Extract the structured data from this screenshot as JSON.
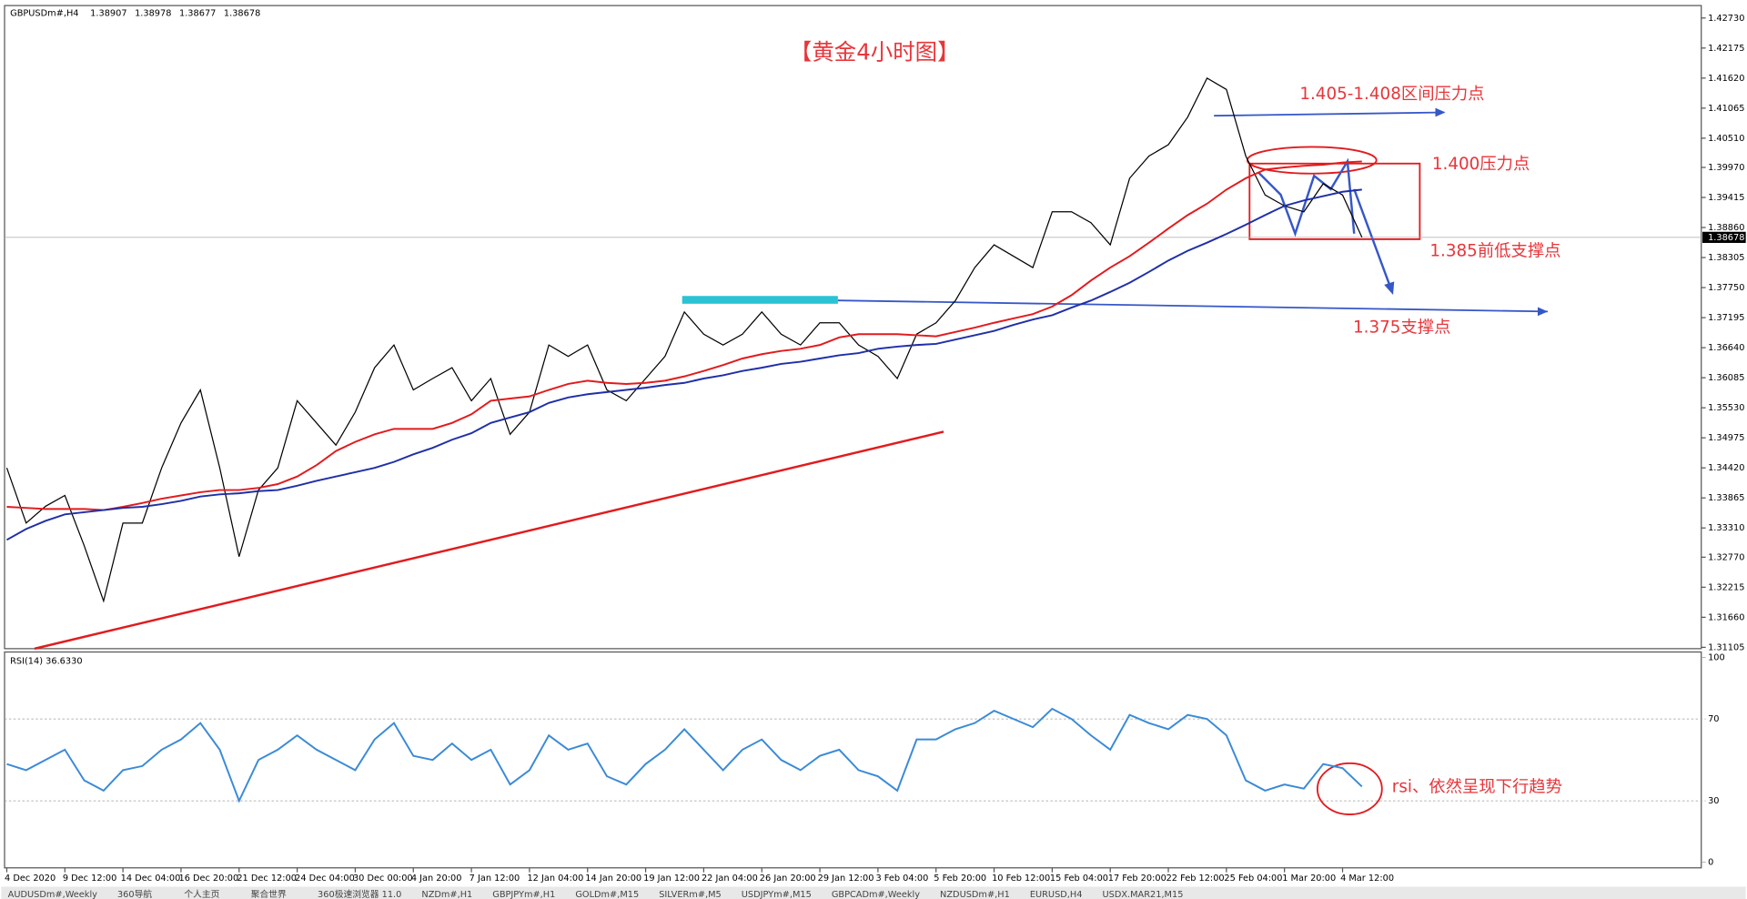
{
  "window": {
    "symbol": "GBPUSDm#,H4",
    "ohlc": [
      1.38907,
      1.38978,
      1.38677,
      1.38678
    ],
    "tabs": [
      "AUDUSDm#,Weekly",
      "360导航",
      "个人主页",
      "聚合世界",
      "360极速浏览器 11.0",
      "NZDm#,H1",
      "GBPJPYm#,H1",
      "GOLDm#,M15",
      "SILVERm#,M5",
      "USDJPYm#,M15",
      "GBPCADm#,Weekly",
      "NZDUSDm#,H1",
      "EURUSD,H4",
      "USDX.MAR21,M15"
    ]
  },
  "chart_data": [
    {
      "type": "line",
      "title": "【黄金4小时图】",
      "annotations": [
        "1.405-1.408区间压力点",
        "1.400压力点",
        "1.385前低支撑点",
        "1.375支撑点"
      ],
      "current_price": 1.38678,
      "categories": [
        "4 Dec 2020",
        null,
        null,
        "9 Dec 12:00",
        null,
        null,
        "14 Dec 04:00",
        null,
        null,
        "16 Dec 20:00",
        null,
        null,
        "21 Dec 12:00",
        null,
        null,
        "24 Dec 04:00",
        null,
        null,
        "30 Dec 00:00",
        null,
        null,
        "4 Jan 20:00",
        null,
        null,
        "7 Jan 12:00",
        null,
        null,
        "12 Jan 04:00",
        null,
        null,
        "14 Jan 20:00",
        null,
        null,
        "19 Jan 12:00",
        null,
        null,
        "22 Jan 04:00",
        null,
        null,
        "26 Jan 20:00",
        null,
        null,
        "29 Jan 12:00",
        null,
        null,
        "3 Feb 04:00",
        null,
        null,
        "5 Feb 20:00",
        null,
        null,
        "10 Feb 12:00",
        null,
        null,
        "15 Feb 04:00",
        null,
        null,
        "17 Feb 20:00",
        null,
        null,
        "22 Feb 12:00",
        null,
        null,
        "25 Feb 04:00",
        null,
        null,
        "1 Mar 20:00",
        null,
        null,
        "4 Mar 12:00",
        null
      ],
      "series": [
        {
          "color": "#000000",
          "values": [
            1.3442,
            1.334,
            1.3371,
            1.3391,
            1.3298,
            1.3196,
            1.334,
            1.334,
            1.3442,
            1.3525,
            1.3586,
            1.3442,
            1.3278,
            1.3401,
            1.3442,
            1.3566,
            1.3525,
            1.3484,
            1.3545,
            1.3627,
            1.3669,
            1.3586,
            1.3607,
            1.3627,
            1.3566,
            1.3607,
            1.3504,
            1.3545,
            1.3669,
            1.3648,
            1.3669,
            1.3586,
            1.3566,
            1.3607,
            1.3648,
            1.373,
            1.3689,
            1.3669,
            1.3689,
            1.373,
            1.3689,
            1.3669,
            1.371,
            1.371,
            1.3669,
            1.3648,
            1.3607,
            1.3689,
            1.371,
            1.3751,
            1.3812,
            1.3854,
            1.3833,
            1.3812,
            1.3915,
            1.3915,
            1.3895,
            1.3854,
            1.3977,
            1.4018,
            1.4039,
            1.409,
            1.4162,
            1.4141,
            1.4018,
            1.3946,
            1.3926,
            1.3915,
            1.3967,
            1.3946,
            1.3868
          ]
        },
        {
          "color": "#e31a1c",
          "values": [
            1.337,
            1.3368,
            1.3366,
            1.3366,
            1.3366,
            1.3364,
            1.337,
            1.3377,
            1.3385,
            1.3391,
            1.3397,
            1.3401,
            1.3401,
            1.3405,
            1.3412,
            1.3426,
            1.3447,
            1.3473,
            1.349,
            1.3504,
            1.3514,
            1.3514,
            1.3514,
            1.3525,
            1.3541,
            1.3566,
            1.357,
            1.3574,
            1.3586,
            1.3597,
            1.3603,
            1.3599,
            1.3597,
            1.3599,
            1.3603,
            1.3611,
            1.3621,
            1.3632,
            1.3644,
            1.3652,
            1.3658,
            1.3662,
            1.3669,
            1.3683,
            1.3689,
            1.3689,
            1.3689,
            1.3687,
            1.3685,
            1.3693,
            1.3701,
            1.371,
            1.3718,
            1.3726,
            1.374,
            1.3761,
            1.3788,
            1.3812,
            1.3833,
            1.3858,
            1.3884,
            1.3909,
            1.393,
            1.3956,
            1.3977,
            1.3993,
            1.3997,
            1.4,
            1.4002,
            1.4006,
            1.4008
          ]
        },
        {
          "color": "#1f2fa8",
          "values": [
            1.3309,
            1.3329,
            1.3344,
            1.3356,
            1.336,
            1.3364,
            1.3368,
            1.337,
            1.3375,
            1.3381,
            1.3389,
            1.3393,
            1.3395,
            1.3399,
            1.3401,
            1.3409,
            1.3418,
            1.3426,
            1.3434,
            1.3442,
            1.3453,
            1.3467,
            1.3479,
            1.3494,
            1.3506,
            1.3525,
            1.3535,
            1.3545,
            1.3562,
            1.3572,
            1.3578,
            1.3582,
            1.3586,
            1.359,
            1.3595,
            1.3599,
            1.3607,
            1.3613,
            1.3621,
            1.3627,
            1.3634,
            1.3638,
            1.3644,
            1.365,
            1.3654,
            1.3662,
            1.3666,
            1.3669,
            1.3671,
            1.3679,
            1.3687,
            1.3695,
            1.3706,
            1.3716,
            1.3724,
            1.3738,
            1.3751,
            1.3767,
            1.3784,
            1.3804,
            1.3825,
            1.3843,
            1.3858,
            1.3874,
            1.3891,
            1.3909,
            1.3926,
            1.3936,
            1.3944,
            1.3952,
            1.3956
          ]
        }
      ],
      "ylim": [
        1.3108,
        1.4296
      ],
      "yticks": [
        {
          "value": 1.4273,
          "label": "1.42730"
        },
        1.42175,
        {
          "value": 1.4162,
          "label": "1.41620"
        },
        1.41065,
        {
          "value": 1.4051,
          "label": "1.40510"
        },
        {
          "value": 1.3997,
          "label": "1.39970"
        },
        1.39415,
        {
          "value": 1.3886,
          "label": "1.38860"
        },
        1.38305,
        {
          "value": 1.3775,
          "label": "1.37750"
        },
        1.37195,
        {
          "value": 1.3664,
          "label": "1.36640"
        },
        1.36085,
        {
          "value": 1.3553,
          "label": "1.35530"
        },
        1.34975,
        {
          "value": 1.3442,
          "label": "1.34420"
        },
        1.33865,
        {
          "value": 1.3331,
          "label": "1.33310"
        },
        {
          "value": 1.3277,
          "label": "1.32770"
        },
        1.32215,
        {
          "value": 1.3166,
          "label": "1.31660"
        },
        1.31105
      ]
    },
    {
      "type": "line",
      "title": "RSI(14) 36.6330",
      "annotations": [
        "rsi、依然呈现下行趋势"
      ],
      "series": [
        {
          "color": "#3a8ad8",
          "values": [
            48,
            45,
            50,
            55,
            40,
            35,
            45,
            47,
            55,
            60,
            68,
            55,
            30,
            50,
            55,
            62,
            55,
            50,
            45,
            60,
            68,
            52,
            50,
            58,
            50,
            55,
            38,
            45,
            62,
            55,
            58,
            42,
            38,
            48,
            55,
            65,
            55,
            45,
            55,
            60,
            50,
            45,
            52,
            55,
            45,
            42,
            35,
            60,
            60,
            65,
            68,
            74,
            70,
            66,
            75,
            70,
            62,
            55,
            72,
            68,
            65,
            72,
            70,
            62,
            40,
            35,
            38,
            36,
            48,
            46,
            37
          ]
        }
      ],
      "ylim": [
        0,
        100
      ],
      "yticks": [
        100,
        70,
        30,
        0
      ]
    }
  ]
}
